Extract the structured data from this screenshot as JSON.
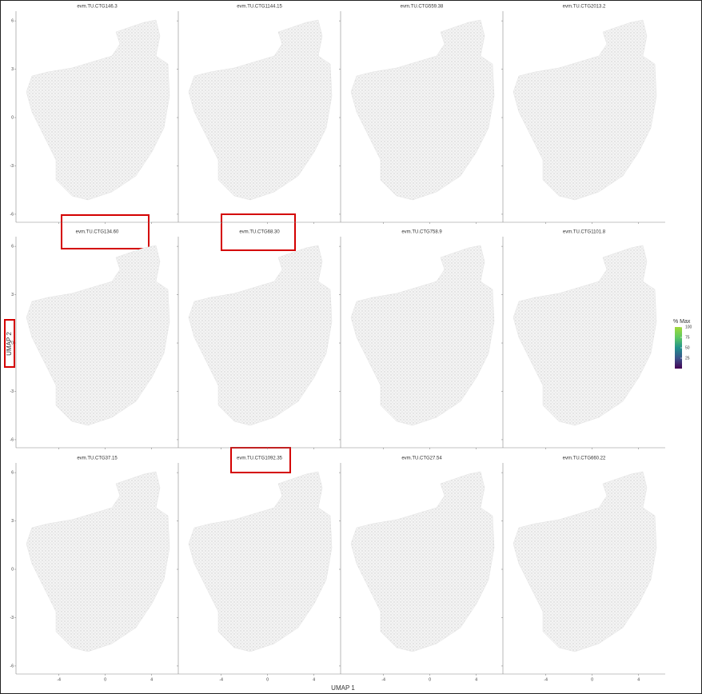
{
  "panels": [
    {
      "title": "evm.TU.CTG146.3"
    },
    {
      "title": "evm.TU.CTG1144.15"
    },
    {
      "title": "evm.TU.CTG559.38"
    },
    {
      "title": "evm.TU.CTG2013.2"
    },
    {
      "title": "evm.TU.CTG134.60"
    },
    {
      "title": "evm.TU.CTG68.30"
    },
    {
      "title": "evm.TU.CTG758.9"
    },
    {
      "title": "evm.TU.CTG1101.8"
    },
    {
      "title": "evm.TU.CTG37.15"
    },
    {
      "title": "evm.TU.CTG1092.35"
    },
    {
      "title": "evm.TU.CTG27.54"
    },
    {
      "title": "evm.TU.CTG660.22"
    }
  ],
  "xlim": [
    -7.7,
    6.3
  ],
  "ylim": [
    -6.5,
    6.8
  ],
  "xticks": [
    -4,
    0,
    4
  ],
  "yticks": [
    6,
    3,
    0,
    -3,
    -6
  ],
  "x_label": "UMAP 1",
  "y_label": "UMAP 2",
  "legend": {
    "title": "% Max",
    "lim": [
      0,
      100
    ],
    "ticks": [
      100,
      75,
      50,
      25
    ]
  }
}
